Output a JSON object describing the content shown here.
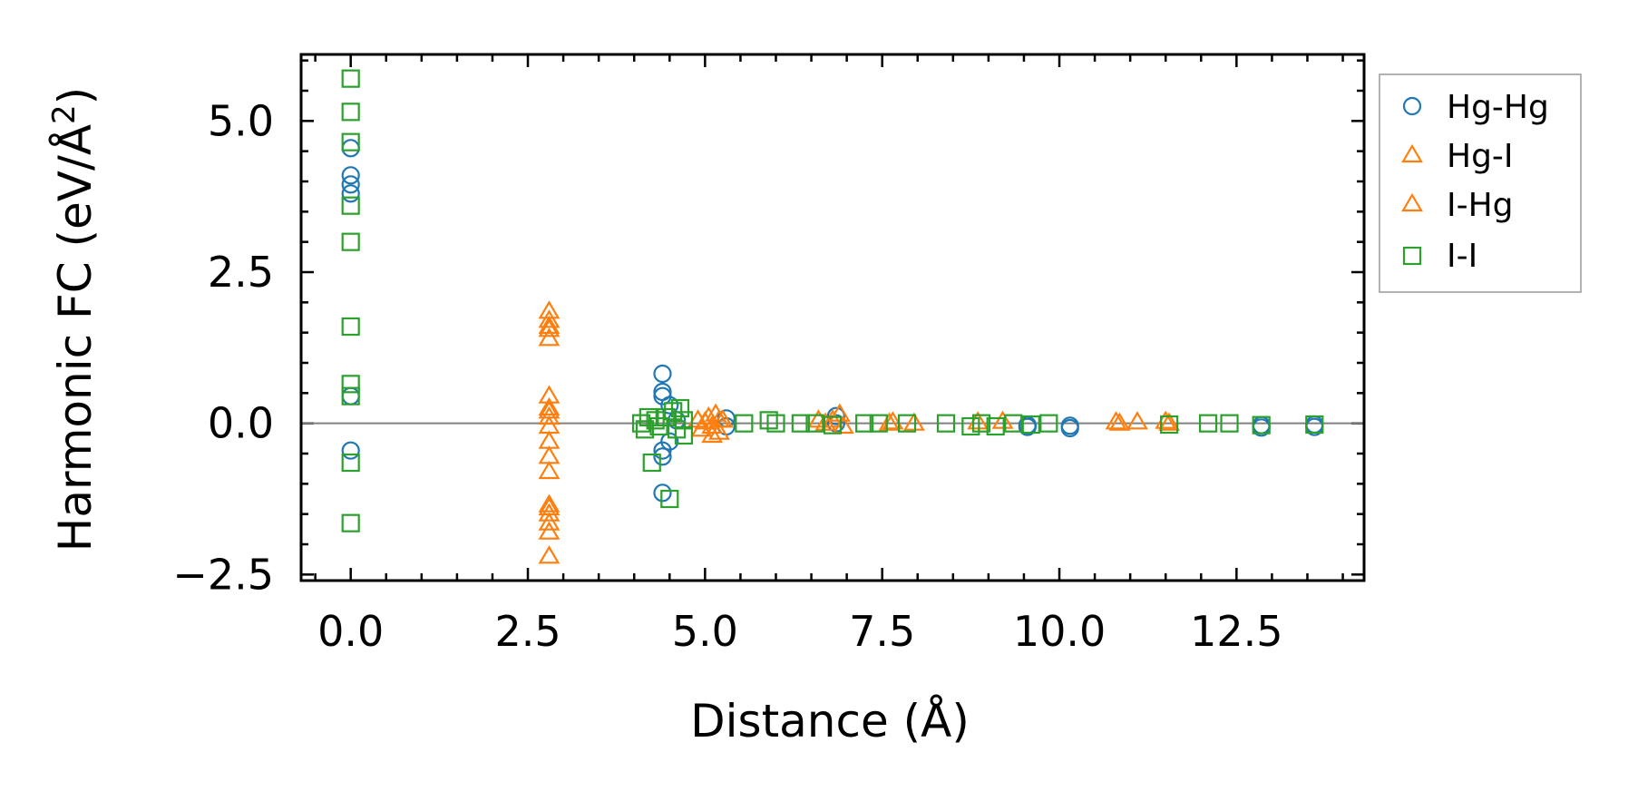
{
  "chart_data": {
    "type": "scatter",
    "title": "",
    "xlabel": "Distance (Å)",
    "ylabel_main": "Harmonic FC (eV/Å",
    "ylabel_sup": "2",
    "ylabel_close": ")",
    "xlim": [
      -0.7,
      14.3
    ],
    "ylim": [
      -2.6,
      6.1
    ],
    "x_ticks": [
      0.0,
      2.5,
      5.0,
      7.5,
      10.0,
      12.5
    ],
    "x_tick_labels": [
      "0.0",
      "2.5",
      "5.0",
      "7.5",
      "10.0",
      "12.5"
    ],
    "y_ticks": [
      -2.5,
      0.0,
      2.5,
      5.0
    ],
    "y_tick_labels": [
      "−2.5",
      "0.0",
      "2.5",
      "5.0"
    ],
    "x_minor_step": 0.5,
    "y_minor_step": 0.5,
    "zero_line": true,
    "legend_position": "outside-top-right",
    "series": [
      {
        "name": "Hg-Hg",
        "marker": "circle",
        "color": "#1f77b4",
        "points": [
          [
            0.0,
            4.55
          ],
          [
            0.0,
            4.1
          ],
          [
            0.0,
            3.95
          ],
          [
            0.0,
            3.8
          ],
          [
            0.0,
            0.45
          ],
          [
            0.0,
            -0.45
          ],
          [
            4.4,
            0.82
          ],
          [
            4.4,
            0.52
          ],
          [
            4.4,
            0.45
          ],
          [
            4.4,
            -0.45
          ],
          [
            4.4,
            -0.55
          ],
          [
            4.4,
            -1.15
          ],
          [
            4.5,
            0.3
          ],
          [
            4.5,
            -0.3
          ],
          [
            4.6,
            0.05
          ],
          [
            5.3,
            0.08
          ],
          [
            5.3,
            -0.05
          ],
          [
            6.85,
            0.12
          ],
          [
            6.85,
            0.0
          ],
          [
            9.55,
            -0.03
          ],
          [
            9.55,
            -0.06
          ],
          [
            10.15,
            -0.04
          ],
          [
            10.15,
            -0.08
          ],
          [
            12.85,
            -0.03
          ],
          [
            12.85,
            -0.07
          ],
          [
            13.6,
            -0.02
          ],
          [
            13.6,
            -0.06
          ]
        ]
      },
      {
        "name": "Hg-I",
        "marker": "triangle",
        "color": "#ff7f0e",
        "points": [
          [
            2.8,
            1.85
          ],
          [
            2.8,
            1.7
          ],
          [
            2.8,
            1.55
          ],
          [
            2.8,
            1.4
          ],
          [
            2.8,
            0.45
          ],
          [
            2.8,
            0.25
          ],
          [
            2.8,
            0.1
          ],
          [
            2.8,
            -0.05
          ],
          [
            2.8,
            -0.3
          ],
          [
            2.8,
            -0.55
          ],
          [
            2.8,
            -0.8
          ],
          [
            2.8,
            -1.35
          ],
          [
            2.8,
            -1.5
          ],
          [
            2.8,
            -1.65
          ],
          [
            2.8,
            -1.8
          ],
          [
            2.8,
            -2.2
          ],
          [
            4.9,
            0.05
          ],
          [
            4.95,
            -0.1
          ],
          [
            5.05,
            0.1
          ],
          [
            5.1,
            -0.05
          ],
          [
            5.1,
            -0.2
          ],
          [
            5.15,
            0.15
          ],
          [
            5.2,
            -0.15
          ],
          [
            5.25,
            0.05
          ],
          [
            6.6,
            0.05
          ],
          [
            6.7,
            0.0
          ],
          [
            6.9,
            0.15
          ],
          [
            6.95,
            -0.05
          ],
          [
            7.65,
            0.02
          ],
          [
            7.95,
            0.0
          ],
          [
            8.85,
            0.02
          ],
          [
            9.2,
            0.03
          ],
          [
            10.8,
            0.02
          ],
          [
            11.1,
            0.02
          ],
          [
            11.5,
            0.03
          ]
        ]
      },
      {
        "name": "I-Hg",
        "marker": "triangle",
        "color": "#ff7f0e",
        "points": [
          [
            2.8,
            1.6
          ],
          [
            2.8,
            0.2
          ],
          [
            2.8,
            -1.4
          ],
          [
            5.0,
            0.02
          ],
          [
            5.2,
            0.05
          ],
          [
            6.8,
            0.05
          ],
          [
            7.6,
            0.0
          ],
          [
            10.85,
            0.0
          ],
          [
            11.55,
            0.0
          ]
        ]
      },
      {
        "name": "I-I",
        "marker": "square",
        "color": "#2ca02c",
        "points": [
          [
            0.0,
            5.7
          ],
          [
            0.0,
            5.15
          ],
          [
            0.0,
            4.65
          ],
          [
            0.0,
            3.6
          ],
          [
            0.0,
            3.0
          ],
          [
            0.0,
            1.6
          ],
          [
            0.0,
            0.65
          ],
          [
            0.0,
            0.45
          ],
          [
            0.0,
            -0.65
          ],
          [
            0.0,
            -1.65
          ],
          [
            4.1,
            0.0
          ],
          [
            4.15,
            -0.1
          ],
          [
            4.2,
            0.1
          ],
          [
            4.25,
            -0.65
          ],
          [
            4.3,
            0.05
          ],
          [
            4.35,
            -0.05
          ],
          [
            4.45,
            0.1
          ],
          [
            4.5,
            -1.25
          ],
          [
            4.55,
            0.2
          ],
          [
            4.6,
            -0.1
          ],
          [
            4.65,
            0.25
          ],
          [
            4.7,
            0.05
          ],
          [
            4.7,
            -0.2
          ],
          [
            5.55,
            0.0
          ],
          [
            5.9,
            0.05
          ],
          [
            6.0,
            0.0
          ],
          [
            6.35,
            0.0
          ],
          [
            6.55,
            0.0
          ],
          [
            6.8,
            -0.03
          ],
          [
            7.25,
            0.0
          ],
          [
            7.45,
            0.0
          ],
          [
            7.85,
            0.0
          ],
          [
            8.4,
            0.0
          ],
          [
            8.75,
            -0.05
          ],
          [
            8.9,
            0.0
          ],
          [
            9.1,
            -0.05
          ],
          [
            9.35,
            0.0
          ],
          [
            9.6,
            -0.02
          ],
          [
            9.85,
            0.0
          ],
          [
            11.55,
            -0.02
          ],
          [
            12.1,
            0.0
          ],
          [
            12.4,
            0.0
          ],
          [
            12.85,
            -0.03
          ],
          [
            13.6,
            -0.02
          ]
        ]
      }
    ]
  }
}
